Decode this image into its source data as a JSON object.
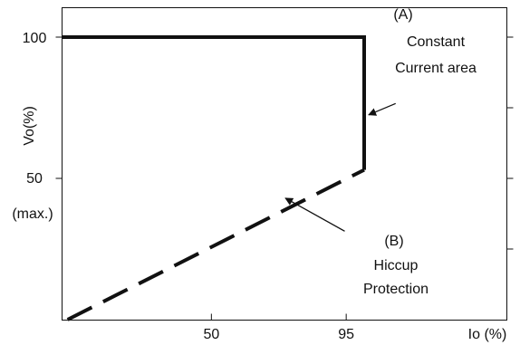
{
  "chart_data": {
    "type": "line",
    "xlabel": "Io (%)",
    "ylabel": "Vo(%)",
    "xlim": [
      0,
      135
    ],
    "ylim": [
      0,
      110
    ],
    "x_ticks": [
      {
        "value": 50,
        "label": "50"
      },
      {
        "value": 95,
        "label": "95"
      }
    ],
    "y_ticks": [
      {
        "value": 100,
        "label": "100",
        "label2": ""
      },
      {
        "value": 50,
        "label": "50",
        "label2": "(max.)"
      }
    ],
    "right_minor_ticks": [
      100,
      75,
      50,
      25
    ],
    "grid": false,
    "series": [
      {
        "style": "solid",
        "color": "#111111",
        "points": [
          [
            0,
            100
          ],
          [
            101,
            100
          ],
          [
            101,
            53
          ]
        ]
      },
      {
        "style": "dashed",
        "color": "#111111",
        "points": [
          [
            2,
            0
          ],
          [
            101,
            53
          ]
        ]
      }
    ],
    "annotations": [
      {
        "id": "constant-current",
        "lines": [
          "(A)",
          "Constant",
          "Current area"
        ],
        "text_anchor": [
          125,
          90
        ],
        "arrow_from": [
          111.5,
          76.5
        ],
        "arrow_to": [
          102.5,
          72.5
        ]
      },
      {
        "id": "hiccup-protection",
        "lines": [
          "(B)",
          "Hiccup",
          "Protection"
        ],
        "text_anchor": [
          110,
          30
        ],
        "arrow_from": [
          94.5,
          31.3
        ],
        "arrow_to": [
          74.7,
          43.0
        ]
      }
    ]
  }
}
